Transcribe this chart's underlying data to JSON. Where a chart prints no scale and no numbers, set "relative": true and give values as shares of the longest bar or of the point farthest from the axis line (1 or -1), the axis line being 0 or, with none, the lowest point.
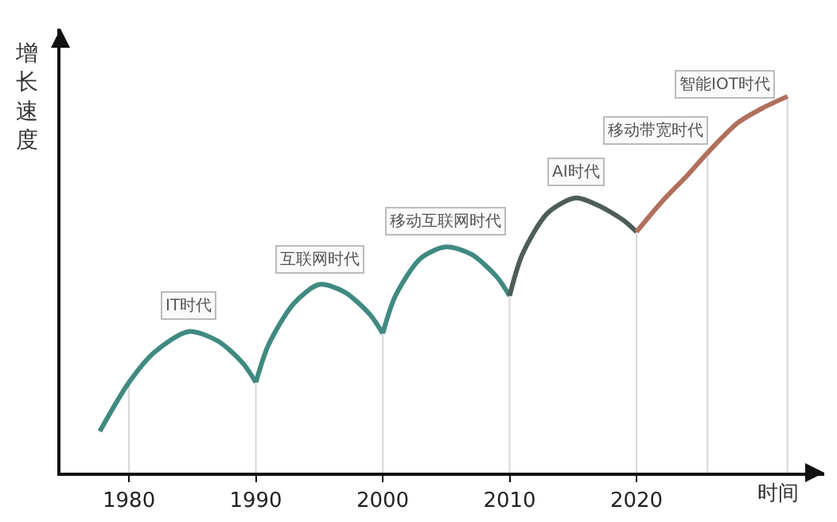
{
  "chart_data": {
    "type": "line",
    "relative": true,
    "xlabel": "时间",
    "ylabel": "增长速度",
    "xlim": [
      1974.6,
      2034.8
    ],
    "xticks": [
      1980,
      1990,
      2000,
      2010,
      2020
    ],
    "series": [
      {
        "color": "#3f8a80",
        "x": [
          1977.7,
          1980,
          1982,
          1984.7,
          1987,
          1989,
          1990
        ],
        "values": [
          0.11,
          0.24,
          0.32,
          0.375,
          0.35,
          0.29,
          0.24
        ]
      },
      {
        "color": "#3f8a80",
        "x": [
          1990,
          1991,
          1993,
          1995,
          1997,
          1999,
          2000
        ],
        "values": [
          0.24,
          0.34,
          0.45,
          0.5,
          0.48,
          0.42,
          0.37
        ]
      },
      {
        "color": "#3f8a80",
        "x": [
          2000,
          2001,
          2003,
          2005,
          2007,
          2009,
          2010
        ],
        "values": [
          0.37,
          0.47,
          0.57,
          0.6,
          0.58,
          0.52,
          0.47
        ]
      },
      {
        "color": "#4e5d5a",
        "x": [
          2010,
          2011,
          2013,
          2015.2,
          2017,
          2019,
          2020
        ],
        "values": [
          0.47,
          0.58,
          0.69,
          0.73,
          0.71,
          0.67,
          0.64
        ]
      },
      {
        "color": "#b0705e",
        "x": [
          2020,
          2022,
          2024,
          2025.6,
          2028,
          2030,
          2031.9
        ],
        "values": [
          0.64,
          0.72,
          0.79,
          0.85,
          0.93,
          0.97,
          1.0
        ]
      }
    ],
    "ref_lines": [
      {
        "axis": "x",
        "value": 1980,
        "color": "#d6d6d6"
      },
      {
        "axis": "x",
        "value": 1990,
        "color": "#d6d6d6"
      },
      {
        "axis": "x",
        "value": 2000,
        "color": "#d6d6d6"
      },
      {
        "axis": "x",
        "value": 2010,
        "color": "#d6d6d6"
      },
      {
        "axis": "x",
        "value": 2020,
        "color": "#d6d6d6"
      },
      {
        "axis": "x",
        "value": 2025.6,
        "color": "#d6d6d6"
      },
      {
        "axis": "x",
        "value": 2031.9,
        "color": "#d6d6d6"
      }
    ],
    "annotations": [
      {
        "text": "IT时代",
        "x": 1984.7,
        "y": 0.375
      },
      {
        "text": "互联网时代",
        "x": 1995,
        "y": 0.5
      },
      {
        "text": "移动互联网时代",
        "x": 2005,
        "y": 0.6
      },
      {
        "text": "AI时代",
        "x": 2015.2,
        "y": 0.73
      },
      "移动带宽时代",
      "智能IOT时代"
    ],
    "grid": false,
    "marker": "none",
    "line_style": "solid"
  }
}
